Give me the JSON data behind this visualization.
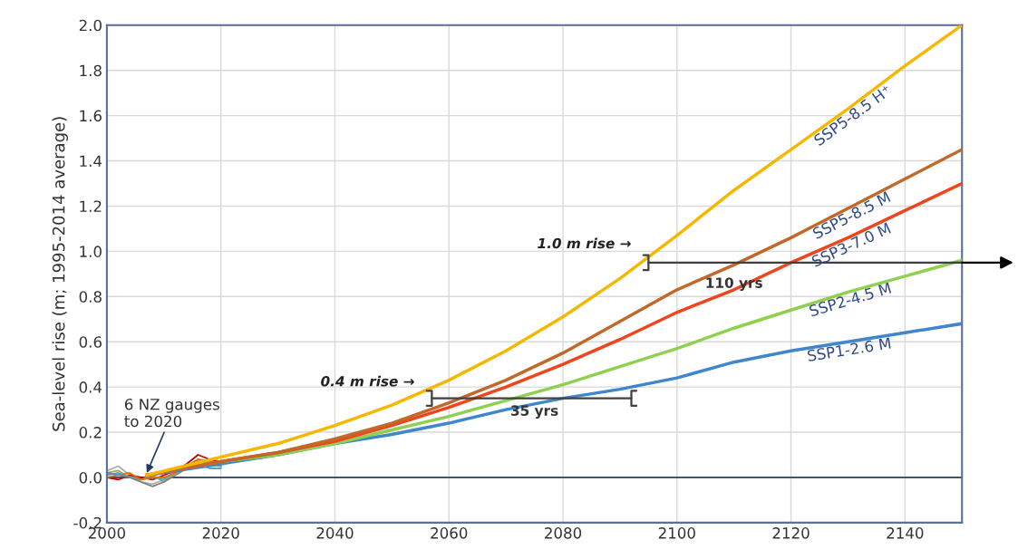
{
  "chart_data": {
    "type": "line",
    "ylabel": "Sea-level rise (m; 1995-2014 average)",
    "xlim": [
      2000,
      2150
    ],
    "xticks": [
      2000,
      2020,
      2040,
      2060,
      2080,
      2100,
      2120,
      2140
    ],
    "ylim": [
      -0.2,
      2.0
    ],
    "yticks": [
      {
        "value": -0.2,
        "label": "-0.2"
      },
      {
        "value": 0.0,
        "label": "0.0"
      },
      {
        "value": 0.2,
        "label": "0.2"
      },
      {
        "value": 0.4,
        "label": "0.4"
      },
      {
        "value": 0.6,
        "label": "0.6"
      },
      {
        "value": 0.8,
        "label": "0.8"
      },
      {
        "value": 1.0,
        "label": "1.0"
      },
      {
        "value": 1.2,
        "label": "1.2"
      },
      {
        "value": 1.4,
        "label": "1.4"
      },
      {
        "value": 1.6,
        "label": "1.6"
      },
      {
        "value": 1.8,
        "label": "1.8"
      },
      {
        "value": 2.0,
        "label": "2.0"
      }
    ],
    "grid": true,
    "marker": "none",
    "line_style": "solid",
    "ref_lines": [
      {
        "axis": "y",
        "value": 0,
        "color": "#44546a"
      }
    ],
    "series": [
      {
        "color": "#b0b0a8",
        "x": [
          2000,
          2002,
          2004,
          2006,
          2008,
          2010,
          2012,
          2014,
          2016,
          2018,
          2020
        ],
        "values": [
          0.03,
          0.05,
          0.01,
          -0.02,
          -0.03,
          -0.01,
          0.02,
          0.05,
          0.08,
          0.06,
          0.05
        ]
      },
      {
        "color": "#c00000",
        "x": [
          2000,
          2002,
          2004,
          2006,
          2008,
          2010,
          2012,
          2014,
          2016,
          2018,
          2020
        ],
        "values": [
          0.0,
          -0.01,
          0.01,
          0.0,
          -0.01,
          0.01,
          0.03,
          0.06,
          0.1,
          0.08,
          0.07
        ]
      },
      {
        "color": "#a5a55a",
        "x": [
          2000,
          2002,
          2004,
          2006,
          2008,
          2010,
          2012,
          2014,
          2016,
          2018,
          2020
        ],
        "values": [
          0.02,
          0.03,
          0.0,
          -0.01,
          0.01,
          -0.02,
          0.02,
          0.04,
          0.07,
          0.05,
          0.06
        ]
      },
      {
        "color": "#4bacc6",
        "x": [
          2000,
          2002,
          2004,
          2006,
          2008,
          2010,
          2012,
          2014,
          2016,
          2018,
          2020
        ],
        "values": [
          0.01,
          0.02,
          0.0,
          -0.01,
          0.0,
          -0.01,
          0.03,
          0.05,
          0.06,
          0.04,
          0.04
        ]
      },
      {
        "color": "#e46c0a",
        "x": [
          2000,
          2002,
          2004,
          2006,
          2008,
          2010,
          2012,
          2014,
          2016,
          2018,
          2020
        ],
        "values": [
          0.0,
          0.01,
          0.02,
          -0.01,
          0.0,
          0.0,
          0.02,
          0.05,
          0.08,
          0.07,
          0.06
        ]
      },
      {
        "color": "#7f7f7f",
        "x": [
          2000,
          2002,
          2004,
          2006,
          2008,
          2010,
          2012,
          2014,
          2016,
          2018,
          2020
        ],
        "values": [
          0.02,
          0.01,
          0.0,
          -0.02,
          -0.04,
          -0.02,
          0.01,
          0.04,
          0.07,
          0.06,
          0.05
        ]
      },
      {
        "name": "SSP1-2.6 M",
        "color": "#3f86cc",
        "x": [
          2007,
          2020,
          2030,
          2040,
          2050,
          2060,
          2070,
          2080,
          2090,
          2100,
          2110,
          2120,
          2130,
          2140,
          2150
        ],
        "values": [
          0.01,
          0.06,
          0.1,
          0.15,
          0.19,
          0.24,
          0.3,
          0.35,
          0.39,
          0.44,
          0.51,
          0.56,
          0.6,
          0.64,
          0.68
        ]
      },
      {
        "name": "SSP2-4.5 M",
        "color": "#8fd14f",
        "x": [
          2007,
          2020,
          2030,
          2040,
          2050,
          2060,
          2070,
          2080,
          2090,
          2100,
          2110,
          2120,
          2130,
          2140,
          2150
        ],
        "values": [
          0.01,
          0.07,
          0.1,
          0.15,
          0.21,
          0.27,
          0.34,
          0.41,
          0.49,
          0.57,
          0.66,
          0.74,
          0.82,
          0.89,
          0.96
        ]
      },
      {
        "name": "SSP3-7.0 M",
        "color": "#f0441c",
        "x": [
          2007,
          2020,
          2030,
          2040,
          2050,
          2060,
          2070,
          2080,
          2090,
          2100,
          2110,
          2120,
          2130,
          2140,
          2150
        ],
        "values": [
          0.01,
          0.07,
          0.11,
          0.16,
          0.23,
          0.31,
          0.4,
          0.5,
          0.61,
          0.73,
          0.83,
          0.95,
          1.06,
          1.18,
          1.3
        ]
      },
      {
        "name": "SSP5-8.5 M",
        "color": "#c0692a",
        "x": [
          2007,
          2020,
          2030,
          2040,
          2050,
          2060,
          2070,
          2080,
          2090,
          2100,
          2110,
          2120,
          2130,
          2140,
          2150
        ],
        "values": [
          0.01,
          0.07,
          0.11,
          0.17,
          0.24,
          0.33,
          0.43,
          0.55,
          0.69,
          0.83,
          0.94,
          1.06,
          1.19,
          1.32,
          1.45
        ]
      },
      {
        "name": "SSP5-8.5 H⁺",
        "color": "#f5b800",
        "x": [
          2007,
          2020,
          2030,
          2040,
          2050,
          2060,
          2070,
          2080,
          2090,
          2100,
          2110,
          2120,
          2130,
          2140,
          2150
        ],
        "values": [
          0.01,
          0.09,
          0.15,
          0.23,
          0.32,
          0.43,
          0.56,
          0.71,
          0.88,
          1.07,
          1.27,
          1.45,
          1.63,
          1.82,
          2.0
        ]
      }
    ],
    "annotations": [
      {
        "text": "6 NZ gauges\nto 2020",
        "x": 2007,
        "y": 0.02
      },
      {
        "text": "0.4 m rise →",
        "x": 2057,
        "y": 0.42
      },
      {
        "text": "1.0 m rise →",
        "x": 2095,
        "y": 1.0
      },
      {
        "text": "35 yrs",
        "x": 2075,
        "y": 0.35
      },
      {
        "text": "110 yrs",
        "x": 2110,
        "y": 0.95
      }
    ]
  }
}
